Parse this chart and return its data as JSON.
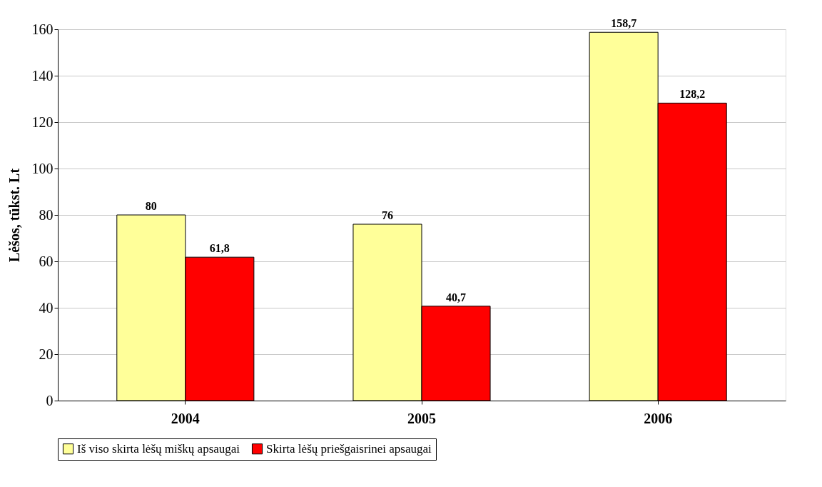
{
  "chart_data": {
    "type": "bar",
    "ylabel": "Lėšos, tūkst. Lt",
    "categories": [
      "2004",
      "2005",
      "2006"
    ],
    "series": [
      {
        "name": "Iš viso skirta lėšų miškų apsaugai",
        "color": "#ffff99",
        "values": [
          80,
          76,
          158.7
        ],
        "value_labels": [
          "80",
          "76",
          "158,7"
        ]
      },
      {
        "name": "Skirta lėšų priešgaisrinei apsaugai",
        "color": "#ff0000",
        "values": [
          61.8,
          40.7,
          128.2
        ],
        "value_labels": [
          "61,8",
          "40,7",
          "128,2"
        ]
      }
    ],
    "ylim": [
      0,
      160
    ],
    "yticks": [
      0,
      20,
      40,
      60,
      80,
      100,
      120,
      140,
      160
    ],
    "grid": "y",
    "legend": "bottom"
  }
}
